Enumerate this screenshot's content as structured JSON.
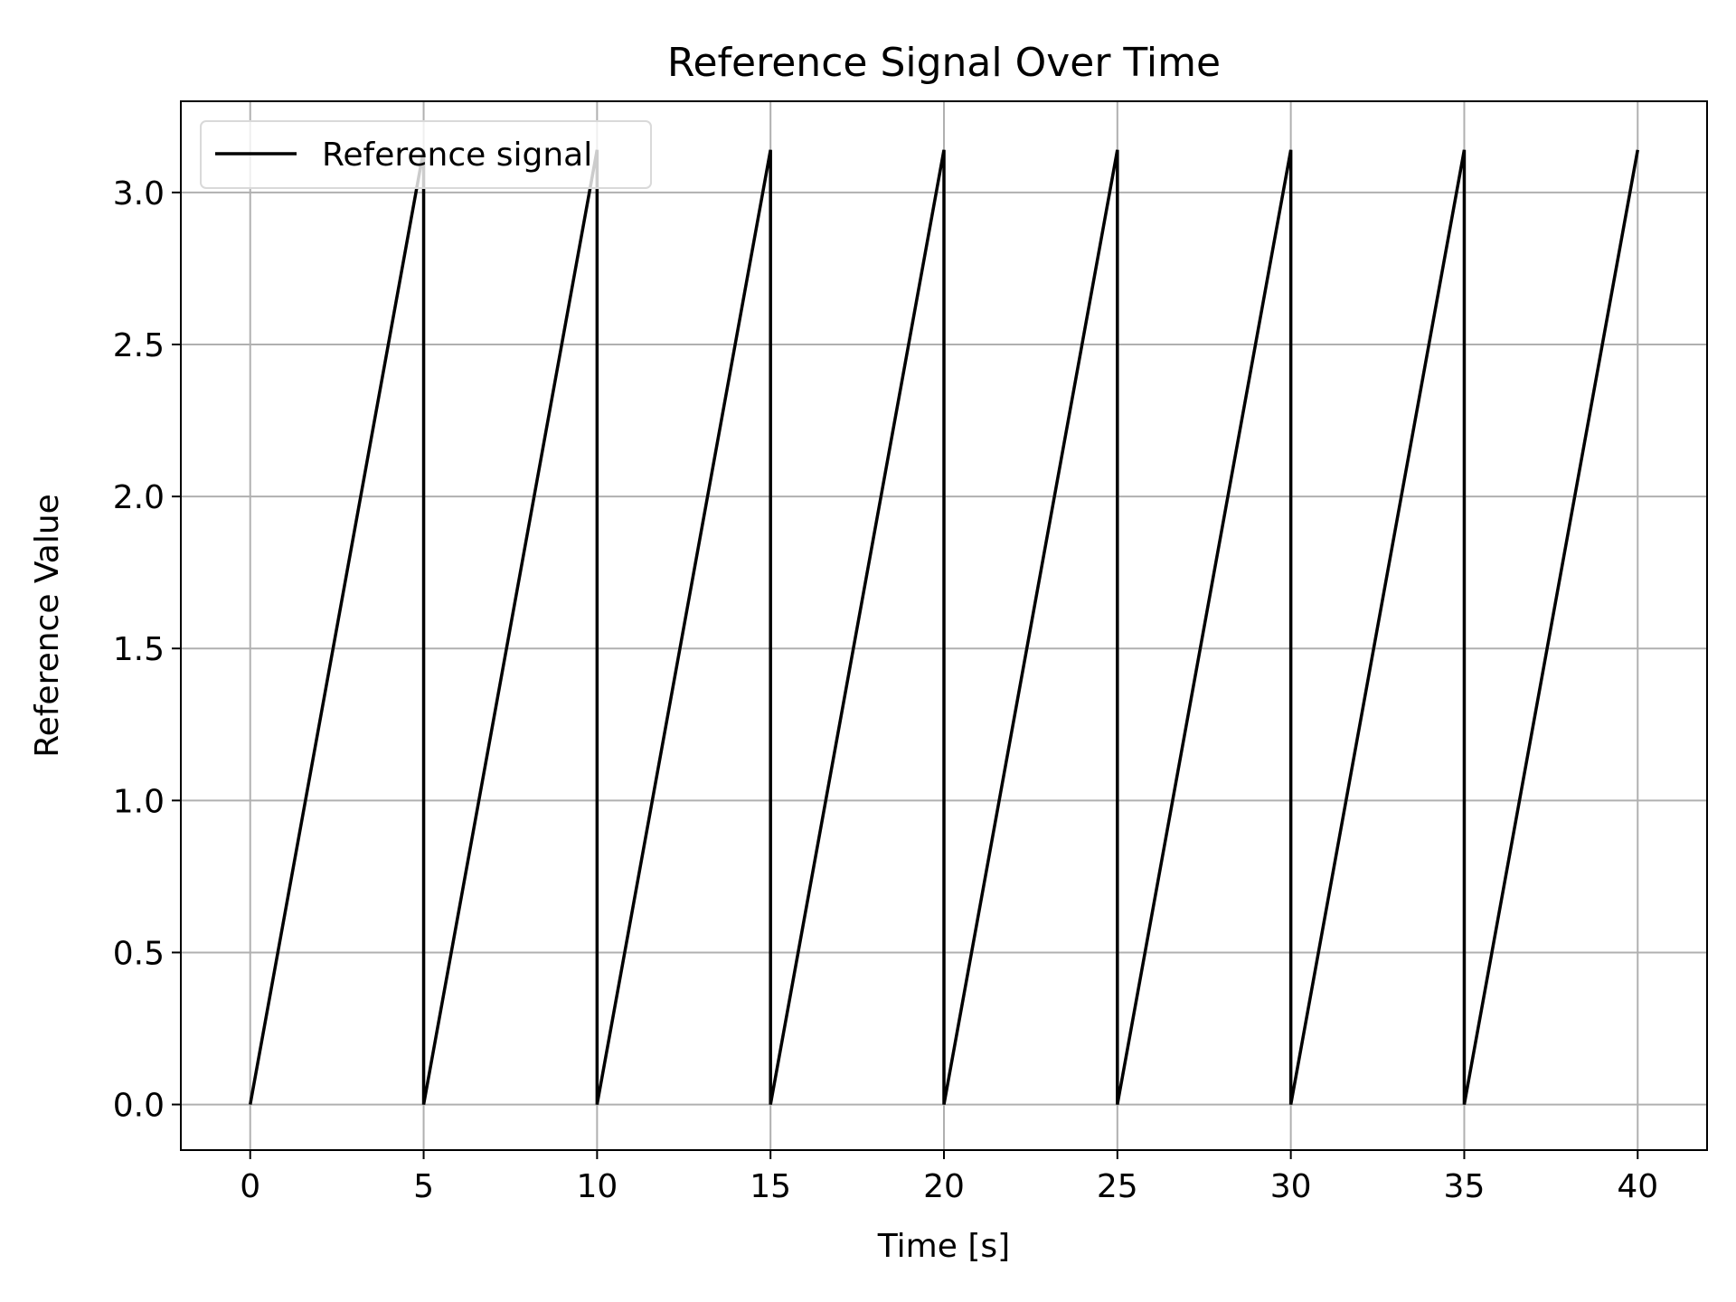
{
  "chart_data": {
    "type": "line",
    "title": "Reference Signal Over Time",
    "xlabel": "Time [s]",
    "ylabel": "Reference Value",
    "xlim": [
      -2,
      42
    ],
    "ylim": [
      -0.15,
      3.3
    ],
    "xticks": [
      0,
      5,
      10,
      15,
      20,
      25,
      30,
      35,
      40
    ],
    "xtick_labels": [
      "0",
      "5",
      "10",
      "15",
      "20",
      "25",
      "30",
      "35",
      "40"
    ],
    "yticks": [
      0.0,
      0.5,
      1.0,
      1.5,
      2.0,
      2.5,
      3.0
    ],
    "ytick_labels": [
      "0.0",
      "0.5",
      "1.0",
      "1.5",
      "2.0",
      "2.5",
      "3.0"
    ],
    "grid": true,
    "legend_position": "top-left",
    "series": [
      {
        "name": "Reference signal",
        "color": "#000000",
        "x": [
          0,
          5,
          5,
          10,
          10,
          15,
          15,
          20,
          20,
          25,
          25,
          30,
          30,
          35,
          35,
          40
        ],
        "y": [
          0,
          3.14,
          0,
          3.14,
          0,
          3.14,
          0,
          3.14,
          0,
          3.14,
          0,
          3.14,
          0,
          3.14,
          0,
          3.14
        ]
      }
    ]
  }
}
